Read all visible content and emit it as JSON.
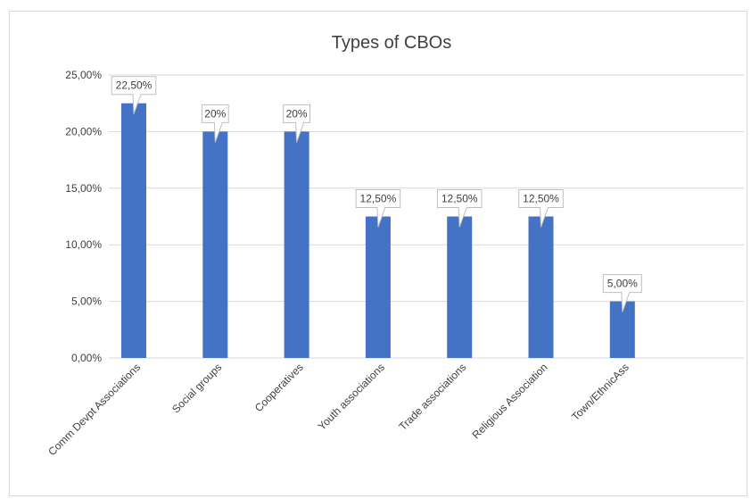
{
  "chart_data": {
    "type": "bar",
    "title": "Types of CBOs",
    "categories": [
      "Comm Devpt Associations",
      "Social groups",
      "Cooperatives",
      "Youth associations",
      "Trade associations",
      "Religious Association",
      "Town/EthnicAss"
    ],
    "values": [
      22.5,
      20,
      20,
      12.5,
      12.5,
      12.5,
      5
    ],
    "data_labels": [
      "22,50%",
      "20%",
      "20%",
      "12,50%",
      "12,50%",
      "12,50%",
      "5,00%"
    ],
    "yticks": [
      "0,00%",
      "5,00%",
      "10,00%",
      "15,00%",
      "20,00%",
      "25,00%"
    ],
    "ylim": [
      0,
      25
    ],
    "grid": true,
    "legend": "none",
    "bar_color": "#4472c4",
    "grid_color": "#d9d9d9",
    "xlabel": "",
    "ylabel": ""
  }
}
